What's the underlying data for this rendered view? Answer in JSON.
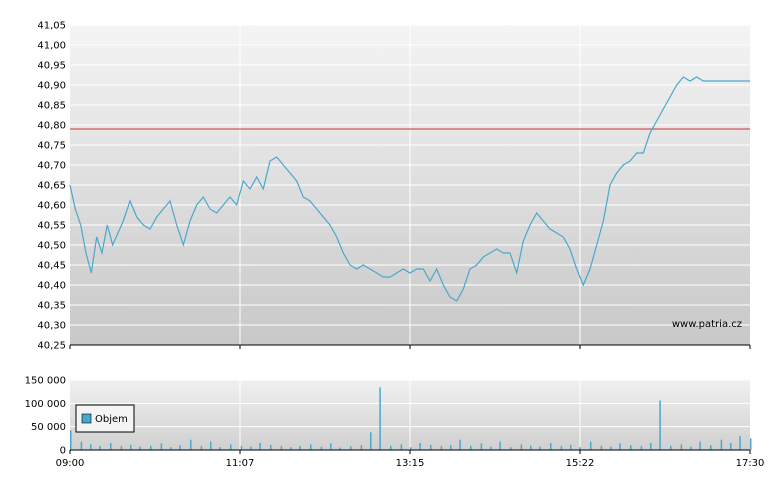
{
  "chart_data": [
    {
      "type": "line",
      "name": "price",
      "x_ticks": [
        "09:00",
        "11:07",
        "13:15",
        "15:22",
        "17:30"
      ],
      "y_ticks": [
        "40,25",
        "40,30",
        "40,35",
        "40,40",
        "40,45",
        "40,50",
        "40,55",
        "40,60",
        "40,65",
        "40,70",
        "40,75",
        "40,80",
        "40,85",
        "40,90",
        "40,95",
        "41,00",
        "41,05"
      ],
      "ylim": [
        40.25,
        41.05
      ],
      "reference_value": 40.79,
      "reference_color": "#cc3333",
      "line_color": "#4aa8cc",
      "watermark": "www.patria.cz",
      "series": [
        {
          "x_minutes": [
            0,
            4,
            8,
            12,
            16,
            20,
            24,
            28,
            32,
            36,
            40,
            45,
            50,
            55,
            60,
            65,
            70,
            75,
            80,
            85,
            90,
            95,
            100,
            105,
            110,
            115,
            120,
            125,
            130,
            135,
            140,
            145,
            150,
            155,
            160,
            165,
            170,
            175,
            180,
            185,
            190,
            195,
            200,
            205,
            210,
            215,
            220,
            225,
            230,
            235,
            240,
            245,
            250,
            255,
            260,
            265,
            270,
            275,
            280,
            285,
            290,
            295,
            300,
            305,
            310,
            315,
            320,
            325,
            330,
            335,
            340,
            345,
            350,
            355,
            360,
            365,
            370,
            375,
            380,
            385,
            390,
            395,
            400,
            405,
            410,
            415,
            420,
            425,
            430,
            435,
            440,
            445,
            450,
            455,
            460,
            465,
            470,
            475,
            480,
            485,
            490,
            495,
            500,
            505,
            510
          ],
          "values": [
            40.65,
            40.59,
            40.55,
            40.48,
            40.43,
            40.52,
            40.48,
            40.55,
            40.5,
            40.53,
            40.56,
            40.61,
            40.57,
            40.55,
            40.54,
            40.57,
            40.59,
            40.61,
            40.55,
            40.5,
            40.56,
            40.6,
            40.62,
            40.59,
            40.58,
            40.6,
            40.62,
            40.6,
            40.66,
            40.64,
            40.67,
            40.64,
            40.71,
            40.72,
            40.7,
            40.68,
            40.66,
            40.62,
            40.61,
            40.59,
            40.57,
            40.55,
            40.52,
            40.48,
            40.45,
            40.44,
            40.45,
            40.44,
            40.43,
            40.42,
            40.42,
            40.43,
            40.44,
            40.43,
            40.44,
            40.44,
            40.41,
            40.44,
            40.4,
            40.37,
            40.36,
            40.39,
            40.44,
            40.45,
            40.47,
            40.48,
            40.49,
            40.48,
            40.48,
            40.43,
            40.51,
            40.55,
            40.58,
            40.56,
            40.54,
            40.53,
            40.52,
            40.49,
            40.44,
            40.4,
            40.44,
            40.5,
            40.56,
            40.65,
            40.68,
            40.7,
            40.71,
            40.73,
            40.73,
            40.78,
            40.81,
            40.84,
            40.87,
            40.9,
            40.92,
            40.91,
            40.92,
            40.91,
            40.91,
            40.91,
            40.91,
            40.91,
            40.91,
            40.91,
            40.91
          ]
        }
      ]
    },
    {
      "type": "bar",
      "name": "volume",
      "legend": "Objem",
      "y_ticks": [
        "0",
        "50 000",
        "100 000",
        "150 000"
      ],
      "ylim": [
        0,
        150000
      ],
      "bar_color": "#4aa8cc",
      "x_minutes": [
        0,
        8,
        15,
        22,
        30,
        38,
        45,
        52,
        60,
        68,
        75,
        82,
        90,
        98,
        105,
        112,
        120,
        128,
        135,
        142,
        150,
        158,
        165,
        172,
        180,
        188,
        195,
        202,
        210,
        218,
        225,
        232,
        240,
        248,
        255,
        262,
        270,
        278,
        285,
        292,
        300,
        308,
        315,
        322,
        330,
        338,
        345,
        352,
        360,
        368,
        375,
        382,
        390,
        398,
        405,
        412,
        420,
        428,
        435,
        442,
        450,
        458,
        465,
        472,
        480,
        488,
        495,
        502,
        510
      ],
      "values": [
        42000,
        18000,
        12000,
        9000,
        15000,
        8000,
        11000,
        7000,
        9000,
        14000,
        6000,
        10000,
        22000,
        8000,
        18000,
        6000,
        12000,
        9000,
        7000,
        15000,
        11000,
        8000,
        6000,
        9000,
        12000,
        7000,
        14000,
        5000,
        8000,
        10000,
        38000,
        134000,
        9000,
        12000,
        6000,
        15000,
        11000,
        8000,
        10000,
        22000,
        9000,
        14000,
        7000,
        18000,
        6000,
        12000,
        9000,
        7000,
        15000,
        8000,
        11000,
        6000,
        18000,
        9000,
        7000,
        14000,
        10000,
        8000,
        15000,
        106000,
        9000,
        12000,
        7000,
        18000,
        10000,
        22000,
        15000,
        30000,
        25000
      ]
    }
  ]
}
